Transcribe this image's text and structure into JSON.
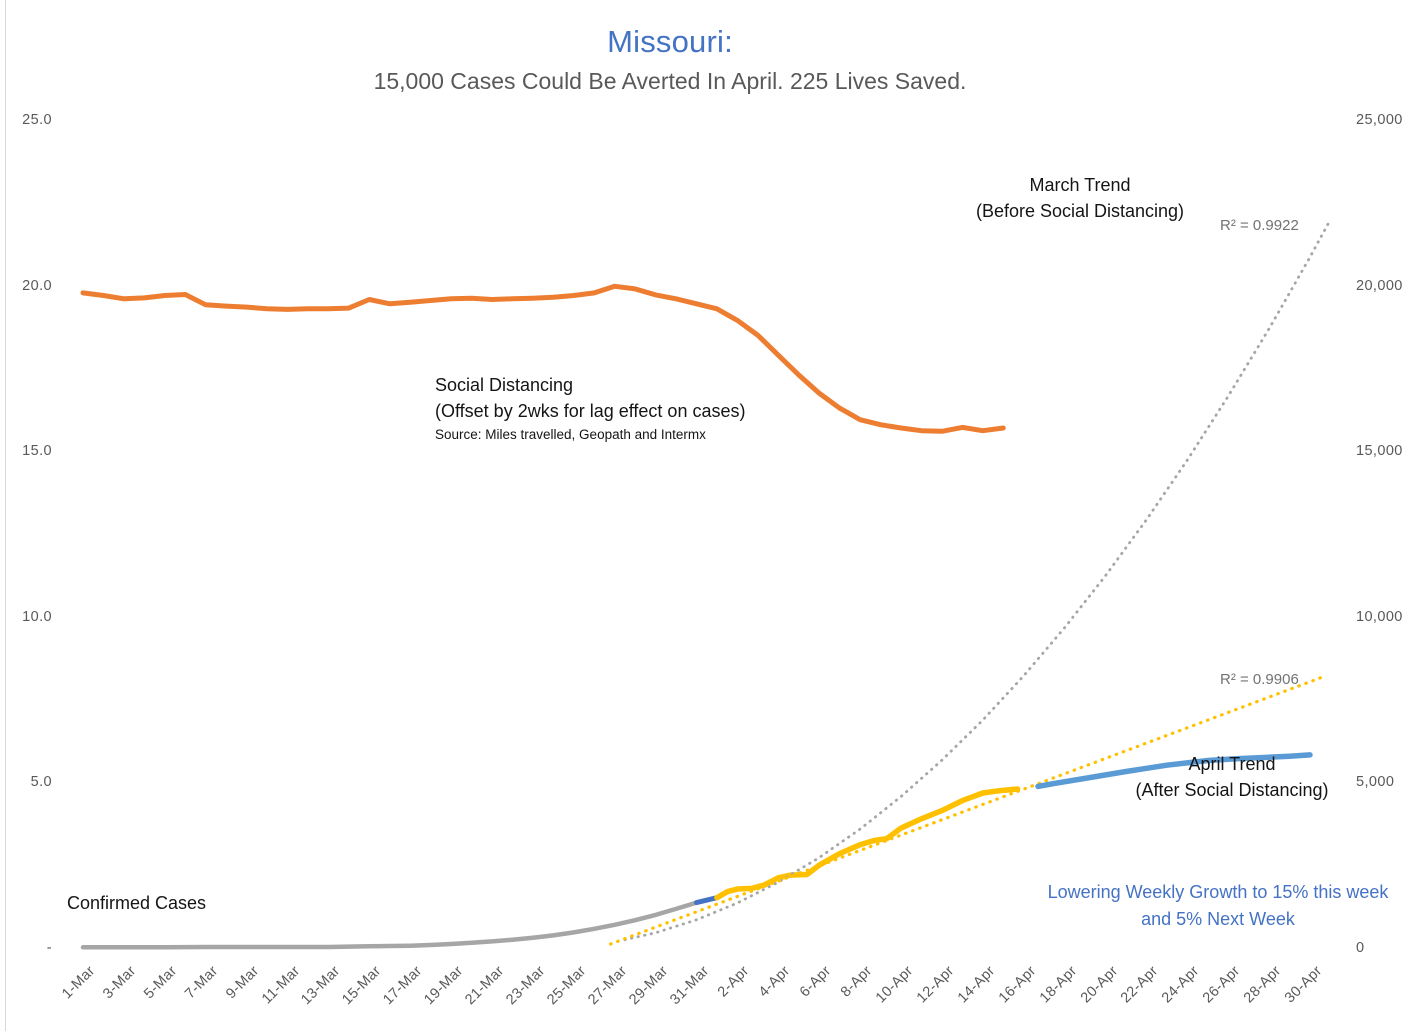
{
  "page": {
    "title": "Missouri:",
    "subtitle": "15,000 Cases Could Be Averted In April. 225 Lives Saved."
  },
  "colors": {
    "title_blue": "#4472C4",
    "subtitle_gray": "#595959",
    "mobility_orange": "#ED7D31",
    "confirmed_gray": "#A6A6A6",
    "april_yellow": "#FFC000",
    "projection_blue": "#5B9BD5",
    "transition_blue": "#4472C4",
    "axis_label_gray": "#595959",
    "r2_gray": "#737373"
  },
  "annotations": {
    "march_trend": {
      "line1": "March Trend",
      "line2": "(Before Social Distancing)"
    },
    "r2_march": "R² = 0.9922",
    "social_distancing": {
      "line1": "Social Distancing",
      "line2": "(Offset by 2wks for lag effect on cases)",
      "source": "Source: Miles travelled, Geopath and Intermx"
    },
    "r2_april": "R² = 0.9906",
    "april_trend": {
      "line1": "April Trend",
      "line2": "(After Social Distancing)"
    },
    "confirmed_cases": "Confirmed Cases",
    "lowering": "Lowering Weekly Growth to 15% this week and 5% Next Week"
  },
  "chart_data": {
    "type": "line",
    "title": "Missouri:",
    "subtitle": "15,000 Cases Could Be Averted In April. 225 Lives Saved.",
    "grid": false,
    "legend": "none (inline text labels)",
    "x_axis": {
      "start": "1-Mar",
      "end": "30-Apr",
      "tick_interval_days": 2,
      "tick_labels": [
        "1-Mar",
        "3-Mar",
        "5-Mar",
        "7-Mar",
        "9-Mar",
        "11-Mar",
        "13-Mar",
        "15-Mar",
        "17-Mar",
        "19-Mar",
        "21-Mar",
        "23-Mar",
        "25-Mar",
        "27-Mar",
        "29-Mar",
        "31-Mar",
        "2-Apr",
        "4-Apr",
        "6-Apr",
        "8-Apr",
        "10-Apr",
        "12-Apr",
        "14-Apr",
        "16-Apr",
        "18-Apr",
        "20-Apr",
        "22-Apr",
        "24-Apr",
        "26-Apr",
        "28-Apr",
        "30-Apr"
      ]
    },
    "y_axis_left": {
      "range": [
        0,
        25
      ],
      "tick_labels_top_down": [
        "25.0",
        "20.0",
        "15.0",
        "10.0",
        "5.0",
        "-"
      ]
    },
    "y_axis_right": {
      "range": [
        0,
        25000
      ],
      "tick_labels_top_down": [
        "25,000",
        "20,000",
        "15,000",
        "10,000",
        "5,000",
        "0"
      ]
    },
    "series": [
      {
        "name": "social-distancing-mobility",
        "label": "Social Distancing (Offset by 2wks for lag effect on cases)",
        "color": "#ED7D31",
        "style": "solid",
        "width": 5,
        "axis": "left",
        "points": [
          [
            0,
            19.78
          ],
          [
            1,
            19.7
          ],
          [
            2,
            19.6
          ],
          [
            3,
            19.63
          ],
          [
            4,
            19.7
          ],
          [
            5,
            19.73
          ],
          [
            6,
            19.42
          ],
          [
            7,
            19.38
          ],
          [
            8,
            19.35
          ],
          [
            9,
            19.3
          ],
          [
            10,
            19.28
          ],
          [
            11,
            19.3
          ],
          [
            12,
            19.3
          ],
          [
            13,
            19.32
          ],
          [
            14,
            19.58
          ],
          [
            15,
            19.45
          ],
          [
            16,
            19.5
          ],
          [
            17,
            19.55
          ],
          [
            18,
            19.6
          ],
          [
            19,
            19.62
          ],
          [
            20,
            19.58
          ],
          [
            21,
            19.6
          ],
          [
            22,
            19.62
          ],
          [
            23,
            19.65
          ],
          [
            24,
            19.7
          ],
          [
            25,
            19.78
          ],
          [
            26,
            19.98
          ],
          [
            27,
            19.9
          ],
          [
            28,
            19.72
          ],
          [
            29,
            19.6
          ],
          [
            30,
            19.45
          ],
          [
            31,
            19.3
          ],
          [
            32,
            18.95
          ],
          [
            33,
            18.5
          ],
          [
            34,
            17.9
          ],
          [
            35,
            17.3
          ],
          [
            36,
            16.75
          ],
          [
            37,
            16.3
          ],
          [
            38,
            15.95
          ],
          [
            39,
            15.8
          ],
          [
            40,
            15.7
          ],
          [
            41,
            15.62
          ],
          [
            42,
            15.6
          ],
          [
            43,
            15.72
          ],
          [
            44,
            15.62
          ],
          [
            45,
            15.7
          ]
        ]
      },
      {
        "name": "confirmed-cases-march",
        "label": "Confirmed Cases (March, thousands)",
        "color": "#A6A6A6",
        "style": "solid",
        "width": 4.5,
        "axis": "right",
        "points": [
          [
            0,
            0.02
          ],
          [
            2,
            0.02
          ],
          [
            4,
            0.02
          ],
          [
            6,
            0.03
          ],
          [
            8,
            0.03
          ],
          [
            10,
            0.03
          ],
          [
            12,
            0.03
          ],
          [
            14,
            0.05
          ],
          [
            15,
            0.06
          ],
          [
            16,
            0.07
          ],
          [
            17,
            0.09
          ],
          [
            18,
            0.12
          ],
          [
            19,
            0.16
          ],
          [
            20,
            0.2
          ],
          [
            21,
            0.25
          ],
          [
            22,
            0.31
          ],
          [
            23,
            0.38
          ],
          [
            24,
            0.47
          ],
          [
            25,
            0.58
          ],
          [
            26,
            0.7
          ],
          [
            27,
            0.84
          ],
          [
            28,
            1.0
          ],
          [
            29,
            1.18
          ],
          [
            30,
            1.37
          ]
        ]
      },
      {
        "name": "confirmed-cases-transition",
        "label": "Confirmed Cases (31-Mar to 1-Apr, thousands)",
        "color": "#4472C4",
        "style": "solid",
        "width": 5,
        "axis": "right",
        "points": [
          [
            30,
            1.37
          ],
          [
            31,
            1.52
          ]
        ]
      },
      {
        "name": "confirmed-cases-april",
        "label": "Confirmed Cases (April, thousands)",
        "color": "#FFC000",
        "style": "solid",
        "width": 5.5,
        "axis": "right",
        "points": [
          [
            31,
            1.52
          ],
          [
            31.5,
            1.7
          ],
          [
            32,
            1.78
          ],
          [
            32.7,
            1.8
          ],
          [
            33.3,
            1.9
          ],
          [
            34,
            2.12
          ],
          [
            34.6,
            2.2
          ],
          [
            35.4,
            2.22
          ],
          [
            36,
            2.5
          ],
          [
            37,
            2.85
          ],
          [
            38,
            3.12
          ],
          [
            38.7,
            3.25
          ],
          [
            39.3,
            3.3
          ],
          [
            40,
            3.62
          ],
          [
            41,
            3.9
          ],
          [
            42,
            4.15
          ],
          [
            43,
            4.45
          ],
          [
            44,
            4.68
          ],
          [
            44.8,
            4.75
          ],
          [
            45.7,
            4.8
          ]
        ]
      },
      {
        "name": "march-trend-projection",
        "label": "March Trend (Before Social Distancing)",
        "r_squared": 0.9922,
        "color": "#A6A6A6",
        "style": "dotted",
        "width": 2.8,
        "axis": "right",
        "points": [
          [
            26.5,
            0.25
          ],
          [
            28,
            0.46
          ],
          [
            30,
            0.85
          ],
          [
            32,
            1.36
          ],
          [
            34,
            1.99
          ],
          [
            36,
            2.73
          ],
          [
            38,
            3.59
          ],
          [
            40,
            4.57
          ],
          [
            42,
            5.67
          ],
          [
            44,
            6.88
          ],
          [
            46,
            8.22
          ],
          [
            48,
            9.67
          ],
          [
            50,
            11.24
          ],
          [
            52,
            12.93
          ],
          [
            54,
            14.73
          ],
          [
            56,
            16.66
          ],
          [
            58,
            18.7
          ],
          [
            60,
            20.86
          ],
          [
            61,
            22.0
          ]
        ]
      },
      {
        "name": "april-trend-fit",
        "label": "April linear trend fit",
        "r_squared": 0.9906,
        "color": "#FFC000",
        "style": "dotted",
        "width": 3.2,
        "axis": "right",
        "points": [
          [
            25.8,
            0.12
          ],
          [
            60.7,
            8.2
          ]
        ]
      },
      {
        "name": "april-trend-projection",
        "label": "April Trend (After Social Distancing)",
        "color": "#5B9BD5",
        "style": "solid",
        "width": 5.5,
        "axis": "right",
        "points": [
          [
            46.7,
            4.88
          ],
          [
            47.5,
            4.97
          ],
          [
            49,
            5.12
          ],
          [
            51,
            5.33
          ],
          [
            53,
            5.52
          ],
          [
            55,
            5.66
          ],
          [
            56.5,
            5.72
          ],
          [
            58,
            5.76
          ],
          [
            59,
            5.79
          ],
          [
            60,
            5.83
          ]
        ]
      }
    ]
  }
}
